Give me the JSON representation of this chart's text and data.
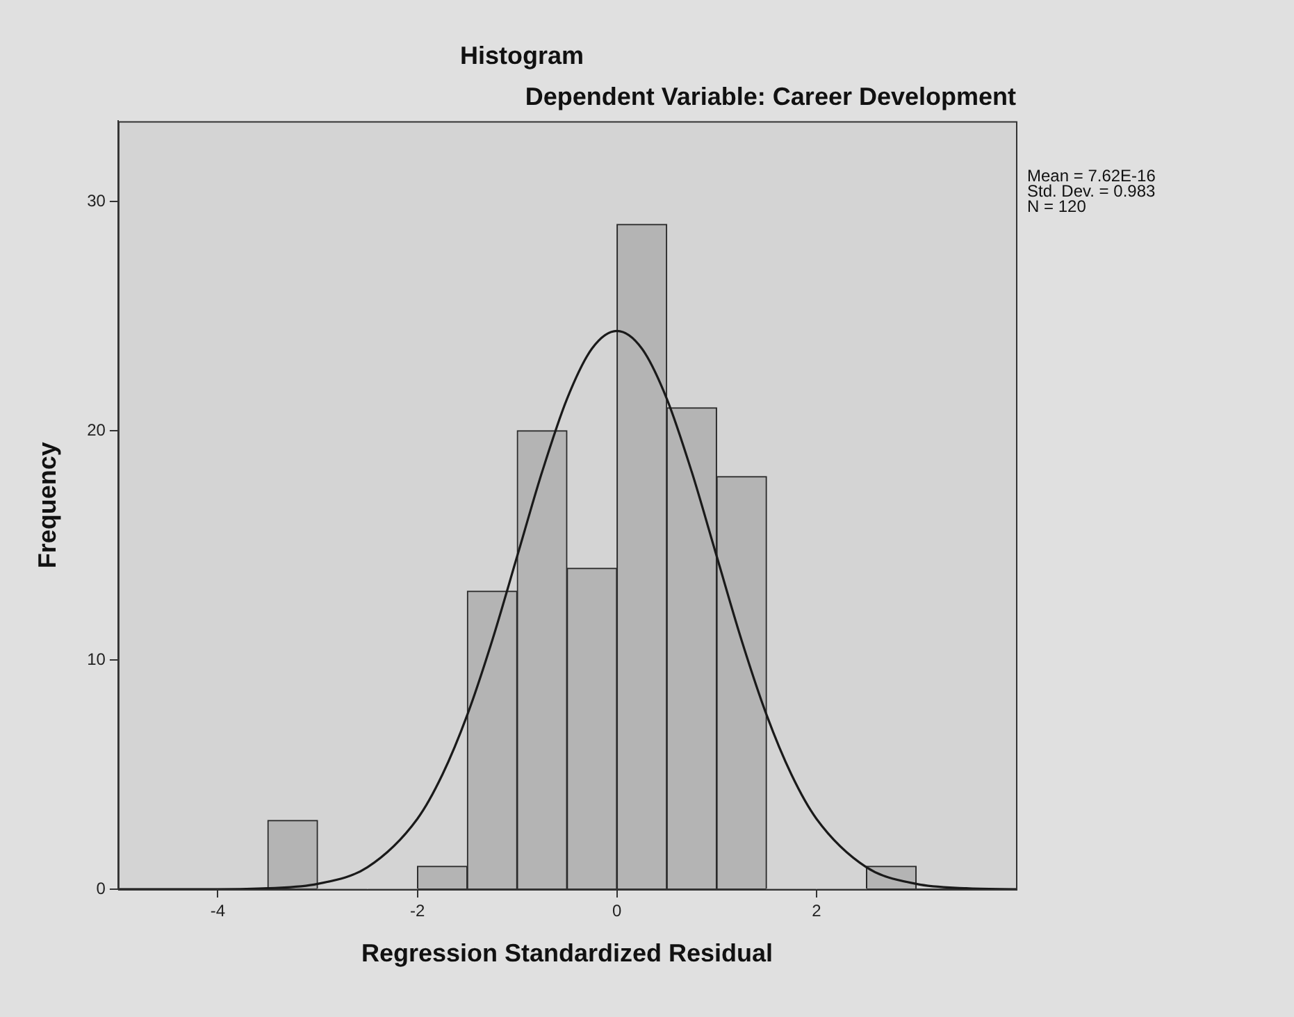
{
  "chart_data": {
    "type": "histogram",
    "title": "Histogram",
    "subtitle": "Dependent Variable: Career Development",
    "xlabel": "Regression Standardized Residual",
    "ylabel": "Frequency",
    "bins": [
      -3.5,
      -3,
      -2.5,
      -2,
      -1.5,
      -1,
      -0.5,
      0,
      0.5,
      1,
      1.5,
      2,
      2.5,
      3
    ],
    "values": [
      3,
      0,
      0,
      1,
      13,
      20,
      14,
      29,
      21,
      18,
      0,
      0,
      1
    ],
    "color": "#b4b4b4",
    "series": [
      {
        "type": "line",
        "color": "#1a1a1a",
        "x": [
          -5,
          -4.5,
          -4,
          -3.5,
          -3,
          -2.5,
          -2,
          -1.75,
          -1.5,
          -1.25,
          -1,
          -0.75,
          -0.5,
          -0.25,
          0,
          0.25,
          0.5,
          0.75,
          1,
          1.25,
          1.5,
          1.75,
          2,
          2.5,
          3,
          3.5,
          4
        ],
        "values": [
          0,
          0,
          0,
          0.04,
          0.23,
          0.96,
          3.07,
          4.99,
          7.6,
          10.85,
          14.52,
          18.2,
          21.39,
          23.58,
          24.35,
          23.58,
          21.39,
          18.2,
          14.52,
          10.85,
          7.6,
          4.99,
          3.07,
          0.96,
          0.23,
          0.04,
          0
        ]
      }
    ],
    "xlim": [
      -5,
      4
    ],
    "xticks": [
      -4,
      -2,
      0,
      2
    ],
    "ylim": [
      0,
      33.5
    ],
    "yticks": [
      0,
      10,
      20,
      30
    ],
    "grid": false,
    "legend": false,
    "marker": "none",
    "line_style": "solid",
    "annotations": [
      "Mean = 7.62E-16",
      "Std. Dev. = 0.983",
      "N = 120"
    ]
  }
}
